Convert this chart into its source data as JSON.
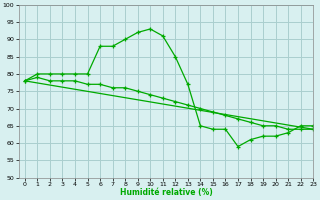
{
  "xlabel": "Humidité relative (%)",
  "background_color": "#d8f0f0",
  "grid_color": "#aacece",
  "line_color": "#00aa00",
  "ylim": [
    50,
    100
  ],
  "xlim": [
    -0.5,
    23
  ],
  "yticks": [
    50,
    55,
    60,
    65,
    70,
    75,
    80,
    85,
    90,
    95,
    100
  ],
  "xticks": [
    0,
    1,
    2,
    3,
    4,
    5,
    6,
    7,
    8,
    9,
    10,
    11,
    12,
    13,
    14,
    15,
    16,
    17,
    18,
    19,
    20,
    21,
    22,
    23
  ],
  "line1_x": [
    0,
    1,
    2,
    3,
    4,
    5,
    6,
    7,
    8,
    9,
    10,
    11,
    12,
    13,
    14,
    15,
    16,
    17,
    18,
    19,
    20,
    21,
    22,
    23
  ],
  "line1_y": [
    78,
    80,
    80,
    80,
    80,
    80,
    88,
    88,
    90,
    92,
    93,
    91,
    85,
    77,
    65,
    64,
    64,
    59,
    61,
    62,
    62,
    63,
    65,
    65
  ],
  "line2_x": [
    0,
    1,
    2,
    3,
    4,
    5,
    6,
    7,
    8,
    9,
    10,
    11,
    12,
    13,
    14,
    15,
    16,
    17,
    18,
    19,
    20,
    21,
    22,
    23
  ],
  "line2_y": [
    78,
    79,
    78,
    78,
    78,
    77,
    77,
    76,
    76,
    75,
    74,
    73,
    72,
    71,
    70,
    69,
    68,
    67,
    66,
    65,
    65,
    64,
    64,
    64
  ],
  "line3_x": [
    0,
    23
  ],
  "line3_y": [
    78,
    64
  ]
}
